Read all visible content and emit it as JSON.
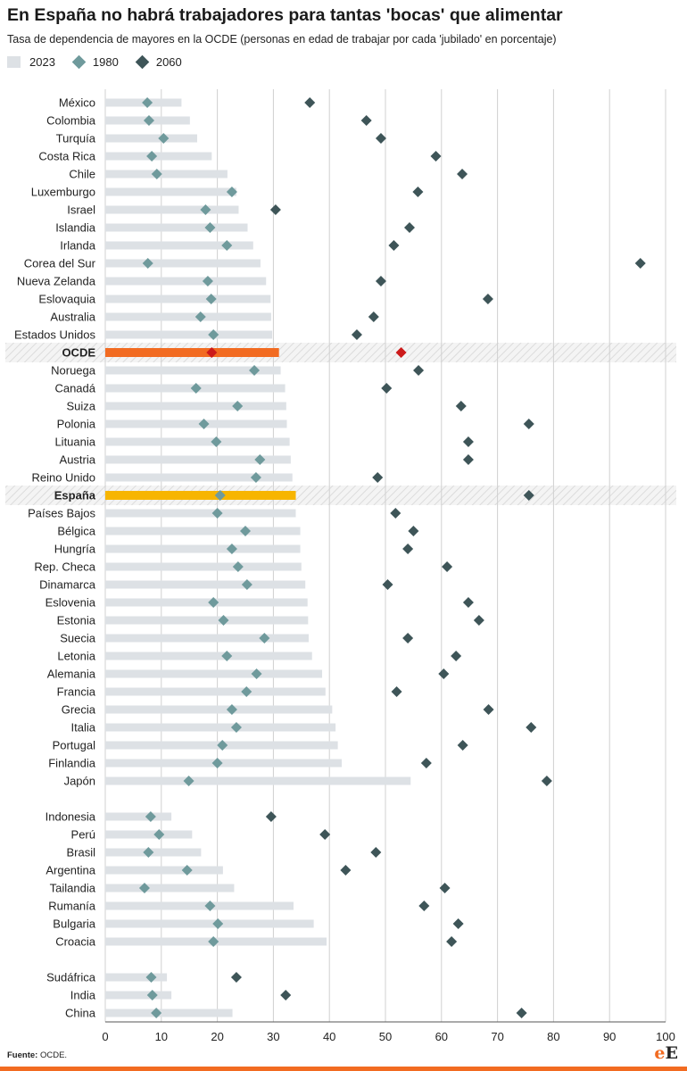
{
  "title": "En España no habrá trabajadores para tantas 'bocas' que alimentar",
  "subtitle": "Tasa de dependencia de mayores en la OCDE (personas en edad de trabajar por cada 'jubilado' en porcentaje)",
  "source_label": "Fuente:",
  "source_text": " OCDE.",
  "logo": {
    "e": "e",
    "E": "E"
  },
  "colors": {
    "bar_2023": "#dde1e5",
    "diamond_1980": "#6f9a9c",
    "diamond_2060": "#3e5558",
    "oecd_bar": "#f26b21",
    "oecd_diamond": "#cc1a1a",
    "spain_bar": "#f7b500",
    "grid": "#d0d0d0",
    "accent": "#f26b21"
  },
  "chart_data": {
    "type": "bar",
    "legend": [
      "2023",
      "1980",
      "2060"
    ],
    "legend_position": "top-left",
    "xlim": [
      0,
      100
    ],
    "xticks": [
      "0",
      "10",
      "20",
      "30",
      "40",
      "50",
      "60",
      "70",
      "80",
      "90",
      "100"
    ],
    "grid": true,
    "series": [
      {
        "name": "2023",
        "type": "bar"
      },
      {
        "name": "1980",
        "type": "marker"
      },
      {
        "name": "2060",
        "type": "marker"
      }
    ],
    "rows": [
      {
        "label": "México",
        "v2023": 13.6,
        "v1980": 7.5,
        "v2060": 36.5
      },
      {
        "label": "Colombia",
        "v2023": 15.1,
        "v1980": 7.8,
        "v2060": 46.6
      },
      {
        "label": "Turquía",
        "v2023": 16.4,
        "v1980": 10.4,
        "v2060": 49.2
      },
      {
        "label": "Costa Rica",
        "v2023": 19.0,
        "v1980": 8.3,
        "v2060": 59.0
      },
      {
        "label": "Chile",
        "v2023": 21.8,
        "v1980": 9.2,
        "v2060": 63.7
      },
      {
        "label": "Luxemburgo",
        "v2023": 23.4,
        "v1980": 22.6,
        "v2060": 55.8
      },
      {
        "label": "Israel",
        "v2023": 23.8,
        "v1980": 17.9,
        "v2060": 30.4
      },
      {
        "label": "Islandia",
        "v2023": 25.4,
        "v1980": 18.7,
        "v2060": 54.3
      },
      {
        "label": "Irlanda",
        "v2023": 26.4,
        "v1980": 21.7,
        "v2060": 51.5
      },
      {
        "label": "Corea del Sur",
        "v2023": 27.7,
        "v1980": 7.6,
        "v2060": 95.5
      },
      {
        "label": "Nueva Zelanda",
        "v2023": 28.7,
        "v1980": 18.3,
        "v2060": 49.2
      },
      {
        "label": "Eslovaquia",
        "v2023": 29.5,
        "v1980": 18.9,
        "v2060": 68.3
      },
      {
        "label": "Australia",
        "v2023": 29.6,
        "v1980": 17.0,
        "v2060": 47.9
      },
      {
        "label": "Estados Unidos",
        "v2023": 29.8,
        "v1980": 19.3,
        "v2060": 44.9
      },
      {
        "label": "OCDE",
        "v2023": 31.0,
        "v1980": 19.0,
        "v2060": 52.8,
        "highlight": "oecd"
      },
      {
        "label": "Noruega",
        "v2023": 31.3,
        "v1980": 26.6,
        "v2060": 55.9
      },
      {
        "label": "Canadá",
        "v2023": 32.1,
        "v1980": 16.2,
        "v2060": 50.2
      },
      {
        "label": "Suiza",
        "v2023": 32.3,
        "v1980": 23.6,
        "v2060": 63.5
      },
      {
        "label": "Polonia",
        "v2023": 32.4,
        "v1980": 17.6,
        "v2060": 75.6
      },
      {
        "label": "Lituania",
        "v2023": 32.9,
        "v1980": 19.8,
        "v2060": 64.8
      },
      {
        "label": "Austria",
        "v2023": 33.1,
        "v1980": 27.6,
        "v2060": 64.8
      },
      {
        "label": "Reino Unido",
        "v2023": 33.4,
        "v1980": 26.9,
        "v2060": 48.6
      },
      {
        "label": "España",
        "v2023": 34.0,
        "v1980": 20.5,
        "v2060": 75.6,
        "highlight": "spain"
      },
      {
        "label": "Países Bajos",
        "v2023": 34.0,
        "v1980": 20.0,
        "v2060": 51.8
      },
      {
        "label": "Bélgica",
        "v2023": 34.8,
        "v1980": 25.0,
        "v2060": 55.0
      },
      {
        "label": "Hungría",
        "v2023": 34.8,
        "v1980": 22.6,
        "v2060": 54.0
      },
      {
        "label": "Rep. Checa",
        "v2023": 35.0,
        "v1980": 23.7,
        "v2060": 61.0
      },
      {
        "label": "Dinamarca",
        "v2023": 35.7,
        "v1980": 25.3,
        "v2060": 50.4
      },
      {
        "label": "Eslovenia",
        "v2023": 36.1,
        "v1980": 19.3,
        "v2060": 64.8
      },
      {
        "label": "Estonia",
        "v2023": 36.2,
        "v1980": 21.1,
        "v2060": 66.7
      },
      {
        "label": "Suecia",
        "v2023": 36.3,
        "v1980": 28.4,
        "v2060": 54.0
      },
      {
        "label": "Letonia",
        "v2023": 36.9,
        "v1980": 21.7,
        "v2060": 62.6
      },
      {
        "label": "Alemania",
        "v2023": 38.7,
        "v1980": 27.0,
        "v2060": 60.4
      },
      {
        "label": "Francia",
        "v2023": 39.3,
        "v1980": 25.2,
        "v2060": 52.0
      },
      {
        "label": "Grecia",
        "v2023": 40.5,
        "v1980": 22.6,
        "v2060": 68.4
      },
      {
        "label": "Italia",
        "v2023": 41.1,
        "v1980": 23.4,
        "v2060": 76.0
      },
      {
        "label": "Portugal",
        "v2023": 41.5,
        "v1980": 20.9,
        "v2060": 63.8
      },
      {
        "label": "Finlandia",
        "v2023": 42.2,
        "v1980": 20.0,
        "v2060": 57.3
      },
      {
        "label": "Japón",
        "v2023": 54.5,
        "v1980": 14.9,
        "v2060": 78.8
      },
      {
        "label": "Indonesia",
        "v2023": 11.8,
        "v1980": 8.1,
        "v2060": 29.6
      },
      {
        "label": "Perú",
        "v2023": 15.5,
        "v1980": 9.6,
        "v2060": 39.2
      },
      {
        "label": "Brasil",
        "v2023": 17.1,
        "v1980": 7.7,
        "v2060": 48.3
      },
      {
        "label": "Argentina",
        "v2023": 21.0,
        "v1980": 14.6,
        "v2060": 42.9
      },
      {
        "label": "Tailandia",
        "v2023": 23.0,
        "v1980": 7.0,
        "v2060": 60.6
      },
      {
        "label": "Rumanía",
        "v2023": 33.6,
        "v1980": 18.7,
        "v2060": 56.9
      },
      {
        "label": "Bulgaria",
        "v2023": 37.2,
        "v1980": 20.1,
        "v2060": 63.0
      },
      {
        "label": "Croacia",
        "v2023": 39.5,
        "v1980": 19.3,
        "v2060": 61.8
      },
      {
        "label": "Sudáfrica",
        "v2023": 11.0,
        "v1980": 8.2,
        "v2060": 23.4
      },
      {
        "label": "India",
        "v2023": 11.8,
        "v1980": 8.4,
        "v2060": 32.2
      },
      {
        "label": "China",
        "v2023": 22.7,
        "v1980": 9.1,
        "v2060": 74.3
      }
    ]
  }
}
